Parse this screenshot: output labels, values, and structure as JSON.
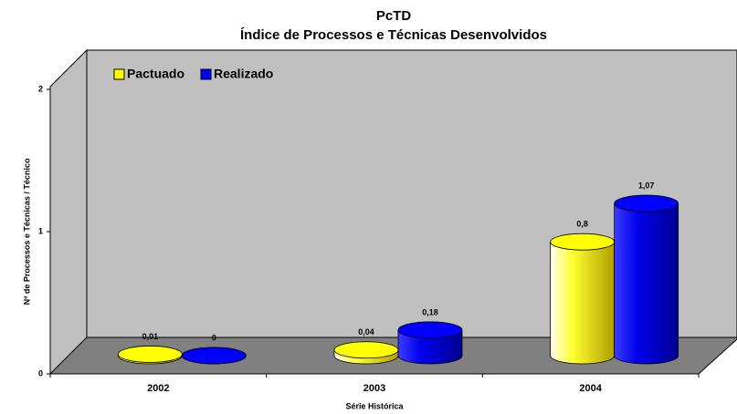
{
  "chart_data": {
    "type": "bar",
    "title": "PcTD",
    "subtitle": "Índice de Processos e Técnicas Desenvolvidos",
    "x_label": "Série Histórica",
    "y_label": "Nº de Processos e Técnicas / Técnico",
    "categories": [
      "2002",
      "2003",
      "2004"
    ],
    "series": [
      {
        "name": "Pactuado",
        "color": "#ffff00",
        "values": [
          0.01,
          0.04,
          0.8
        ],
        "value_labels": [
          "0,01",
          "0,04",
          "0,8"
        ]
      },
      {
        "name": "Realizado",
        "color": "#0000ff",
        "values": [
          0,
          0.18,
          1.07
        ],
        "value_labels": [
          "0",
          "0,18",
          "1,07"
        ]
      }
    ],
    "ylim": [
      0,
      2
    ],
    "yticks": [
      0,
      1,
      2
    ],
    "grid": false
  }
}
